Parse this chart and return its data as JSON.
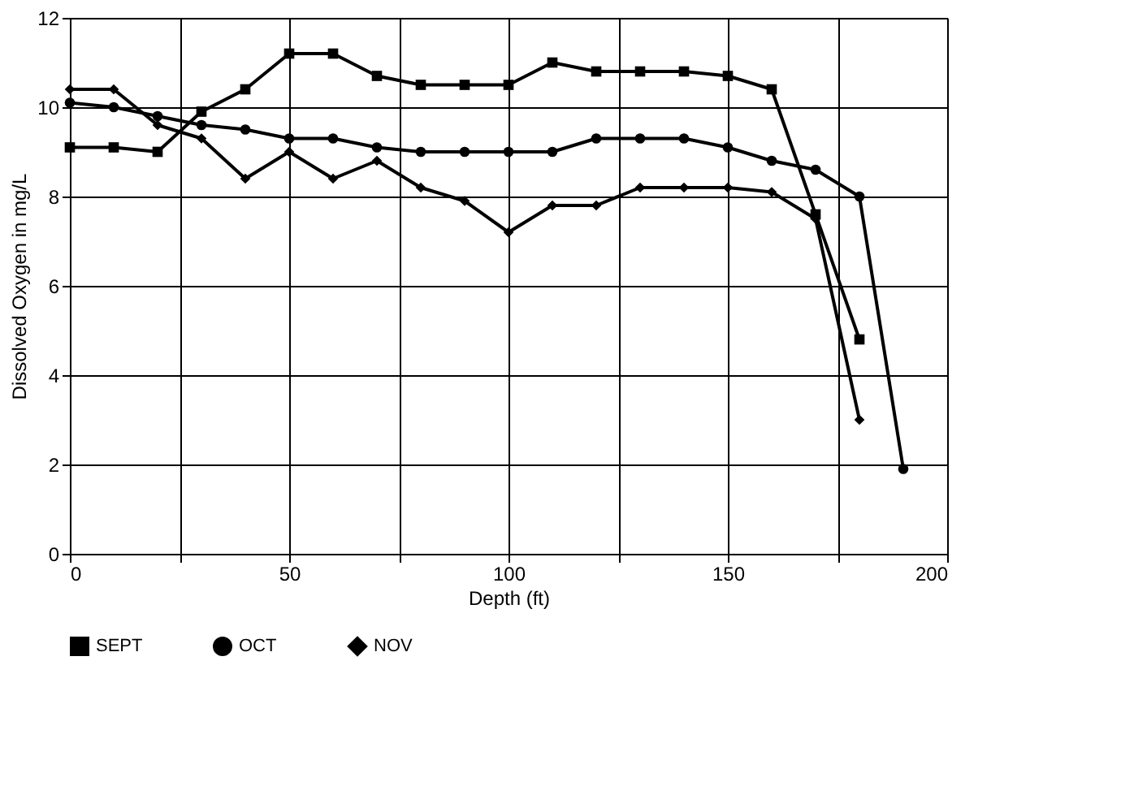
{
  "chart_data": {
    "type": "line",
    "xlabel": "Depth (ft)",
    "ylabel": "Dissolved Oxygen in mg/L",
    "series": [
      {
        "name": "SEPT",
        "color": "#000000",
        "marker": "square",
        "x": [
          0,
          10,
          20,
          30,
          40,
          50,
          60,
          70,
          80,
          90,
          100,
          110,
          120,
          130,
          140,
          150,
          160,
          170,
          180
        ],
        "values": [
          9.1,
          9.1,
          9.0,
          9.9,
          10.4,
          11.2,
          11.2,
          10.7,
          10.5,
          10.5,
          10.5,
          11.0,
          10.8,
          10.8,
          10.8,
          10.7,
          10.4,
          7.6,
          4.8
        ]
      },
      {
        "name": "OCT",
        "color": "#000000",
        "marker": "circle",
        "x": [
          0,
          10,
          20,
          30,
          40,
          50,
          60,
          70,
          80,
          90,
          100,
          110,
          120,
          130,
          140,
          150,
          160,
          170,
          180,
          190
        ],
        "values": [
          10.1,
          10.0,
          9.8,
          9.6,
          9.5,
          9.3,
          9.3,
          9.1,
          9.0,
          9.0,
          9.0,
          9.0,
          9.3,
          9.3,
          9.3,
          9.1,
          8.8,
          8.6,
          8.0,
          1.9
        ]
      },
      {
        "name": "NOV",
        "color": "#000000",
        "marker": "diamond",
        "x": [
          0,
          10,
          20,
          30,
          40,
          50,
          60,
          70,
          80,
          90,
          100,
          110,
          120,
          130,
          140,
          150,
          160,
          170,
          180
        ],
        "values": [
          10.4,
          10.4,
          9.6,
          9.3,
          8.4,
          9.0,
          8.4,
          8.8,
          8.2,
          7.9,
          7.2,
          7.8,
          7.8,
          8.2,
          8.2,
          8.2,
          8.1,
          7.5,
          3.0
        ]
      }
    ],
    "xlim": [
      0,
      200
    ],
    "xticks": [
      0,
      {
        "value": 25,
        "label": null
      },
      50,
      {
        "value": 75,
        "label": null
      },
      100,
      {
        "value": 125,
        "label": null
      },
      150,
      {
        "value": 175,
        "label": null
      },
      200
    ],
    "ylim": [
      0,
      12
    ],
    "yticks": [
      0,
      2,
      4,
      6,
      8,
      10,
      12
    ],
    "grid": true,
    "legend": "bottom",
    "line_style": "solid"
  }
}
